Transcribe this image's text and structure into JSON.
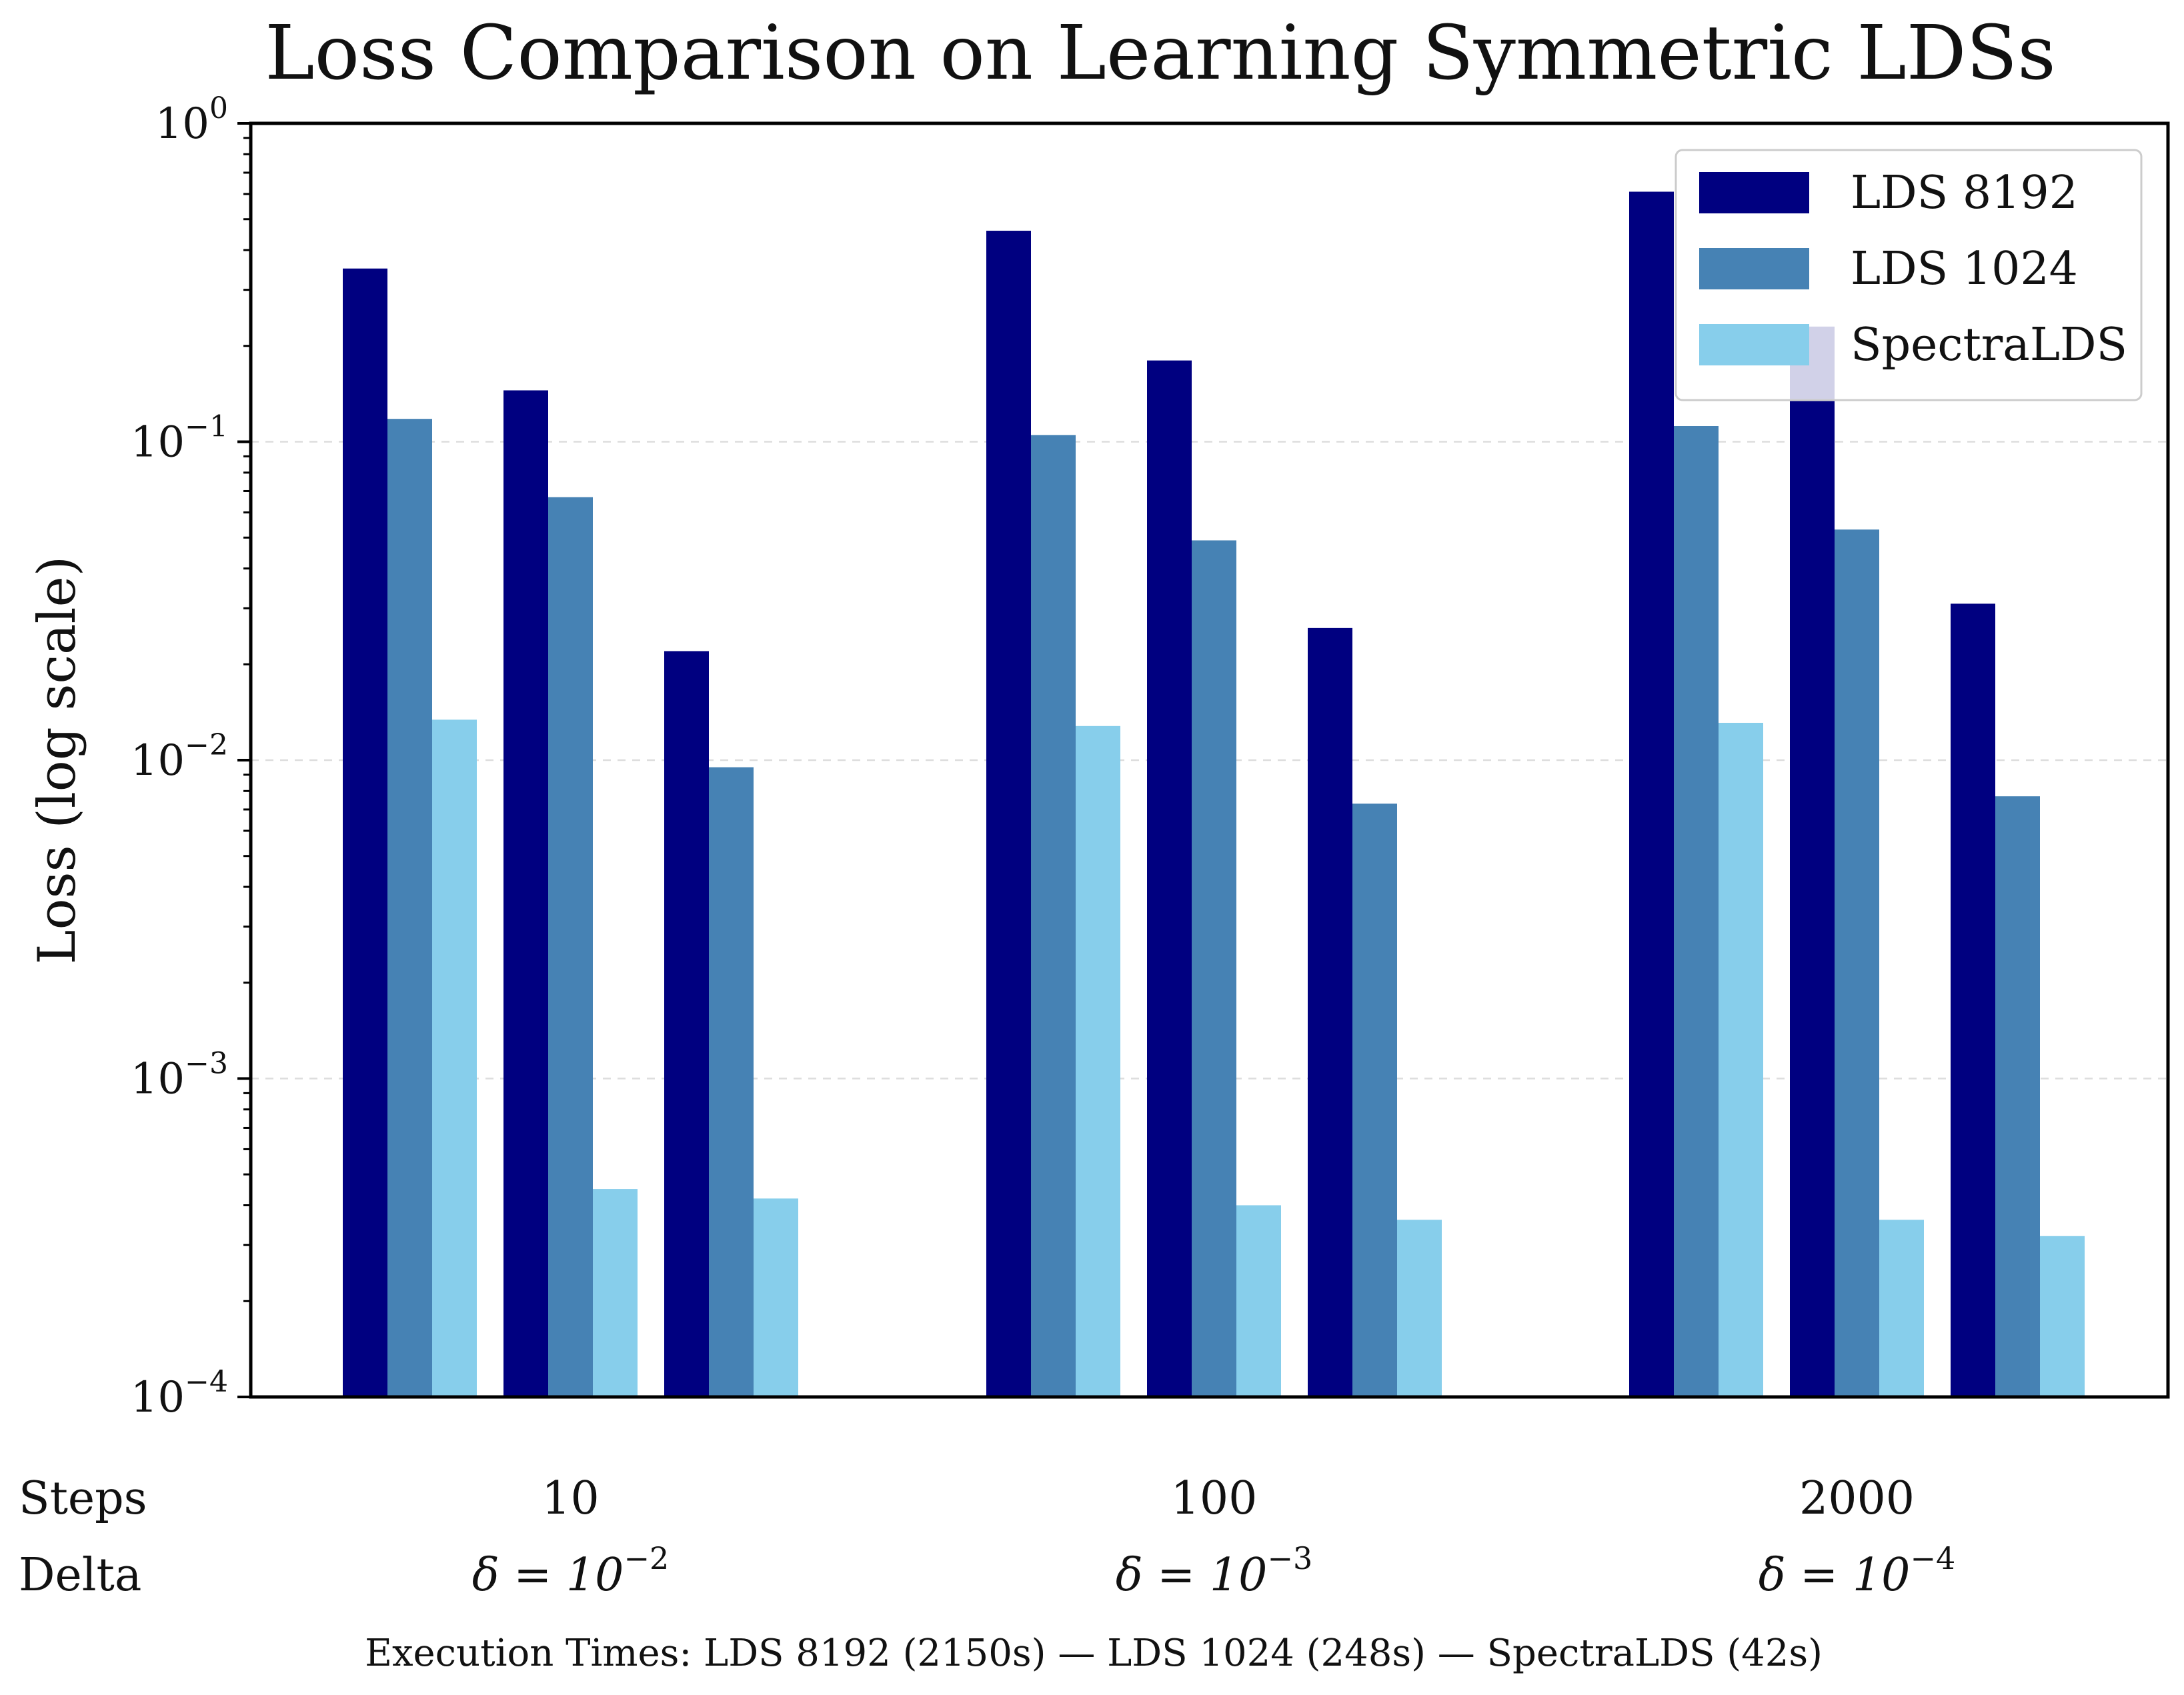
{
  "chart_data": {
    "type": "bar",
    "title": "Loss Comparison on Learning Symmetric LDSs",
    "ylabel": "Loss (log scale)",
    "yscale": "log",
    "ylim": [
      0.0001,
      1
    ],
    "yticks": [
      {
        "base": "10",
        "exp": "0"
      },
      {
        "base": "10",
        "exp": "−1"
      },
      {
        "base": "10",
        "exp": "−2"
      },
      {
        "base": "10",
        "exp": "−3"
      },
      {
        "base": "10",
        "exp": "−4"
      }
    ],
    "grid": "horizontal dashed",
    "legend_position": "top-right",
    "row_labels": {
      "steps": "Steps",
      "delta": "Delta"
    },
    "groups": [
      {
        "steps": "10",
        "delta_base": "δ = 10",
        "delta_exp": "−2"
      },
      {
        "steps": "100",
        "delta_base": "δ = 10",
        "delta_exp": "−3"
      },
      {
        "steps": "2000",
        "delta_base": "δ = 10",
        "delta_exp": "−4"
      }
    ],
    "series": [
      {
        "name": "LDS 8192",
        "color": "#000080",
        "values": [
          0.35,
          0.145,
          0.022,
          0.46,
          0.18,
          0.026,
          0.61,
          0.23,
          0.031
        ]
      },
      {
        "name": "LDS 1024",
        "color": "#4682B4",
        "values": [
          0.118,
          0.067,
          0.0095,
          0.105,
          0.049,
          0.0073,
          0.112,
          0.053,
          0.0077
        ]
      },
      {
        "name": "SpectraLDS",
        "color": "#87CEEB",
        "values": [
          0.0134,
          0.00045,
          0.00042,
          0.0128,
          0.0004,
          0.00036,
          0.0131,
          0.00036,
          0.00032
        ]
      }
    ],
    "footer": "Execution Times: LDS 8192 (2150s) — LDS 1024 (248s) — SpectraLDS (42s)"
  }
}
